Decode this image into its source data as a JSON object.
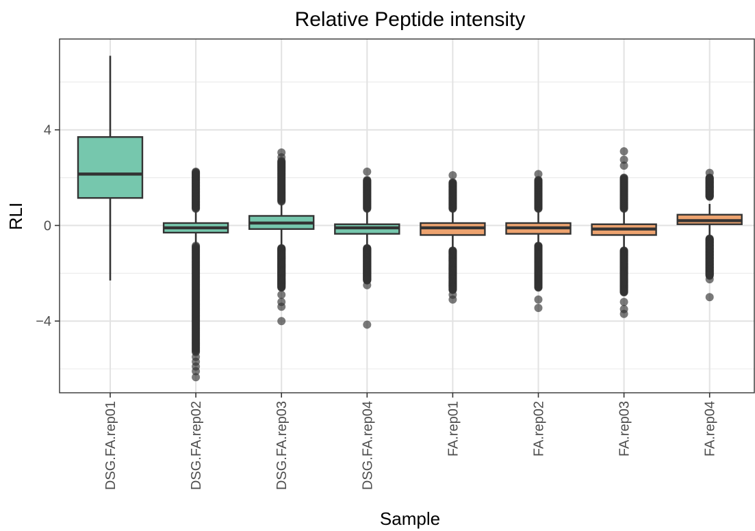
{
  "chart_data": {
    "type": "box",
    "title": "Relative Peptide intensity",
    "xlabel": "Sample",
    "ylabel": "RLI",
    "ylim": [
      -7.0,
      7.8
    ],
    "y_ticks": [
      {
        "value": -4,
        "label": "−4"
      },
      {
        "value": 0,
        "label": "0"
      },
      {
        "value": 4,
        "label": "4"
      }
    ],
    "grid": true,
    "categories": [
      "DSG.FA.rep01",
      "DSG.FA.rep02",
      "DSG.FA.rep03",
      "DSG.FA.rep04",
      "FA.rep01",
      "FA.rep02",
      "FA.rep03",
      "FA.rep04"
    ],
    "groups": [
      {
        "color": "#76c7ad"
      },
      {
        "color": "#76c7ad"
      },
      {
        "color": "#76c7ad"
      },
      {
        "color": "#76c7ad"
      },
      {
        "color": "#eda36f"
      },
      {
        "color": "#eda36f"
      },
      {
        "color": "#eda36f"
      },
      {
        "color": "#eda36f"
      }
    ],
    "boxes": [
      {
        "whisker_low": -2.3,
        "q1": 1.15,
        "median": 2.15,
        "q3": 3.7,
        "whisker_high": 7.1,
        "outlier_high_range": null,
        "outlier_low_range": null,
        "extra_outliers": []
      },
      {
        "whisker_low": -0.85,
        "q1": -0.3,
        "median": -0.1,
        "q3": 0.1,
        "whisker_high": 0.6,
        "outlier_high_range": [
          0.7,
          2.25
        ],
        "outlier_low_range": [
          -0.85,
          -5.3
        ],
        "extra_outliers": [
          -5.5,
          -5.7,
          -5.9,
          -6.1,
          -6.35
        ]
      },
      {
        "whisker_low": -0.9,
        "q1": -0.15,
        "median": 0.1,
        "q3": 0.4,
        "whisker_high": 0.9,
        "outlier_high_range": [
          1.0,
          2.7
        ],
        "outlier_low_range": [
          -0.95,
          -2.6
        ],
        "extra_outliers": [
          2.85,
          3.05,
          -2.9,
          -3.2,
          -3.4,
          -4.0
        ]
      },
      {
        "whisker_low": -0.9,
        "q1": -0.35,
        "median": -0.1,
        "q3": 0.05,
        "whisker_high": 0.6,
        "outlier_high_range": [
          0.7,
          1.9
        ],
        "outlier_low_range": [
          -0.95,
          -2.3
        ],
        "extra_outliers": [
          2.25,
          -2.5,
          -4.15
        ]
      },
      {
        "whisker_low": -1.0,
        "q1": -0.4,
        "median": -0.1,
        "q3": 0.1,
        "whisker_high": 0.6,
        "outlier_high_range": [
          0.7,
          1.8
        ],
        "outlier_low_range": [
          -1.05,
          -2.7
        ],
        "extra_outliers": [
          2.1,
          -2.9,
          -3.1
        ]
      },
      {
        "whisker_low": -0.85,
        "q1": -0.35,
        "median": -0.1,
        "q3": 0.1,
        "whisker_high": 0.6,
        "outlier_high_range": [
          0.7,
          1.9
        ],
        "outlier_low_range": [
          -0.85,
          -2.6
        ],
        "extra_outliers": [
          2.15,
          -3.1,
          -3.45
        ]
      },
      {
        "whisker_low": -1.0,
        "q1": -0.4,
        "median": -0.15,
        "q3": 0.05,
        "whisker_high": 0.6,
        "outlier_high_range": [
          0.7,
          2.0
        ],
        "outlier_low_range": [
          -1.05,
          -2.8
        ],
        "extra_outliers": [
          2.5,
          2.75,
          3.1,
          -3.2,
          -3.5,
          -3.7
        ]
      },
      {
        "whisker_low": -0.5,
        "q1": 0.05,
        "median": 0.2,
        "q3": 0.45,
        "whisker_high": 0.9,
        "outlier_high_range": [
          1.2,
          2.0
        ],
        "outlier_low_range": [
          -0.55,
          -2.1
        ],
        "extra_outliers": [
          2.2,
          -2.25,
          -3.0
        ]
      }
    ]
  }
}
